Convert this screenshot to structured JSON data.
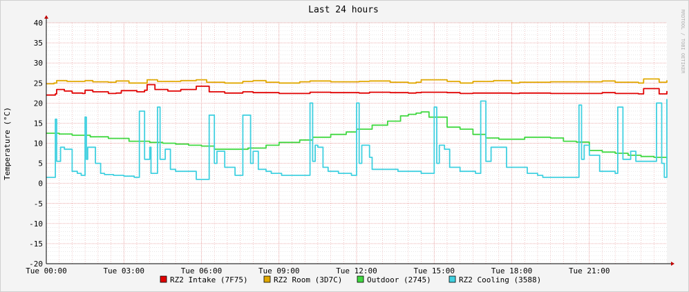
{
  "chart_data": {
    "type": "line",
    "title": "Last 24 hours",
    "ylabel": "Temperature (°C)",
    "watermark": "RRDTOOL / TOBI OETIKER",
    "ylim": [
      -20,
      40
    ],
    "y_ticks": [
      -20,
      -15,
      -10,
      -5,
      0,
      5,
      10,
      15,
      20,
      25,
      30,
      35,
      40
    ],
    "x_range_hours": [
      0,
      24
    ],
    "x_ticks": [
      {
        "hour": 0,
        "label": "Tue 00:00"
      },
      {
        "hour": 3,
        "label": "Tue 03:00"
      },
      {
        "hour": 6,
        "label": "Tue 06:00"
      },
      {
        "hour": 9,
        "label": "Tue 09:00"
      },
      {
        "hour": 12,
        "label": "Tue 12:00"
      },
      {
        "hour": 15,
        "label": "Tue 15:00"
      },
      {
        "hour": 18,
        "label": "Tue 18:00"
      },
      {
        "hour": 21,
        "label": "Tue 21:00"
      }
    ],
    "grid": true,
    "legend_position": "bottom",
    "series": [
      {
        "name": "RZ2 Intake (7F75)",
        "color": "#e00000",
        "x": [
          0,
          0.35,
          0.4,
          0.7,
          1,
          1.4,
          1.5,
          1.8,
          2.4,
          2.7,
          2.9,
          3.5,
          3.8,
          3.9,
          4.2,
          4.7,
          5,
          5.2,
          5.8,
          6.3,
          6.9,
          7.6,
          8,
          8.5,
          9,
          9.8,
          10.2,
          11,
          11.7,
          12.1,
          12.5,
          13.3,
          14,
          14.3,
          14.5,
          15.5,
          16,
          16.5,
          17.3,
          18,
          18.3,
          19.5,
          20.6,
          21.5,
          22,
          22.9,
          23.1,
          23.7,
          24
        ],
        "y": [
          22,
          22.3,
          23.4,
          23,
          22.5,
          22.4,
          23.2,
          22.8,
          22.4,
          22.5,
          23.1,
          22.8,
          23.2,
          24.6,
          23.4,
          23,
          23,
          23.4,
          24.2,
          22.8,
          22.5,
          22.8,
          22.6,
          22.6,
          22.4,
          22.4,
          22.7,
          22.6,
          22.6,
          22.5,
          22.7,
          22.6,
          22.5,
          22.6,
          22.7,
          22.6,
          22.4,
          22.5,
          22.5,
          22.4,
          22.5,
          22.4,
          22.4,
          22.6,
          22.4,
          22.3,
          23.6,
          22.3,
          23
        ]
      },
      {
        "name": "RZ2 Room (3D7C)",
        "color": "#e0a800",
        "x": [
          0,
          0.3,
          0.4,
          0.8,
          1.5,
          1.8,
          2.4,
          2.7,
          3.2,
          3.6,
          3.9,
          4.3,
          4.8,
          5.2,
          5.8,
          6.2,
          6.9,
          7.6,
          8,
          8.5,
          9,
          9.8,
          10.2,
          11,
          11.7,
          12.1,
          12.5,
          13.3,
          14,
          14.3,
          14.5,
          15.5,
          16,
          16.5,
          17.3,
          18,
          18.3,
          19.5,
          20.6,
          21.5,
          22,
          22.9,
          23.1,
          23.7,
          24
        ],
        "y": [
          24.8,
          25,
          25.6,
          25.4,
          25.6,
          25.3,
          25.2,
          25.5,
          25,
          25,
          25.8,
          25.4,
          25.4,
          25.6,
          25.8,
          25.2,
          25,
          25.4,
          25.6,
          25.2,
          25,
          25.3,
          25.5,
          25.3,
          25.3,
          25.4,
          25.5,
          25.2,
          25,
          25.2,
          25.8,
          25.4,
          25,
          25.4,
          25.6,
          25,
          25.2,
          25.3,
          25.3,
          25.5,
          25.2,
          25,
          26,
          25.2,
          25.7
        ]
      },
      {
        "name": "Outdoor (2745)",
        "color": "#40d840",
        "x": [
          0,
          0.5,
          1,
          1.7,
          2.4,
          3.2,
          4.0,
          4.5,
          5.0,
          5.5,
          6.0,
          6.5,
          7.0,
          7.8,
          8.5,
          9.0,
          9.8,
          10.3,
          11.0,
          11.6,
          12.0,
          12.6,
          13.2,
          13.7,
          14.0,
          14.3,
          14.5,
          14.8,
          15.5,
          16.0,
          16.5,
          17.0,
          17.5,
          18.0,
          18.5,
          19.0,
          19.5,
          20.0,
          20.5,
          21.0,
          21.5,
          22.0,
          22.5,
          23.0,
          23.5,
          24.0
        ],
        "y": [
          12.5,
          12.3,
          12.0,
          11.6,
          11.2,
          10.5,
          10.2,
          10.0,
          9.8,
          9.5,
          9.3,
          8.5,
          8.5,
          8.8,
          9.5,
          10.2,
          10.8,
          11.5,
          12.2,
          12.8,
          13.5,
          14.5,
          15.5,
          16.8,
          17.2,
          17.5,
          17.8,
          16.5,
          14.0,
          13.5,
          12.2,
          11.3,
          11.0,
          11.0,
          11.5,
          11.5,
          11.3,
          10.5,
          10.3,
          8.2,
          7.8,
          7.5,
          7.0,
          6.7,
          6.5,
          6.2
        ]
      },
      {
        "name": "RZ2 Cooling (3588)",
        "color": "#40d0e0",
        "x": [
          0,
          0.3,
          0.35,
          0.4,
          0.55,
          0.7,
          1.0,
          1.2,
          1.35,
          1.5,
          1.55,
          1.6,
          1.9,
          2.1,
          2.25,
          2.6,
          2.8,
          3.0,
          3.4,
          3.6,
          3.8,
          4.0,
          4.05,
          4.1,
          4.3,
          4.4,
          4.6,
          4.8,
          5.0,
          5.8,
          6.3,
          6.5,
          6.6,
          6.9,
          7.3,
          7.6,
          7.9,
          8.0,
          8.2,
          8.5,
          8.7,
          9.1,
          10.2,
          10.3,
          10.4,
          10.5,
          10.7,
          10.9,
          11.3,
          11.8,
          12.0,
          12.1,
          12.2,
          12.3,
          12.5,
          12.6,
          13.6,
          14.5,
          15.0,
          15.1,
          15.2,
          15.4,
          15.6,
          16.0,
          16.6,
          16.8,
          17.0,
          17.2,
          17.8,
          18.6,
          19.0,
          19.2,
          20.6,
          20.7,
          20.8,
          21.0,
          21.4,
          22.0,
          22.1,
          22.3,
          22.6,
          22.8,
          23.4,
          23.6,
          23.8,
          23.9,
          24.0
        ],
        "y": [
          1.5,
          1.5,
          16.0,
          5.5,
          9.0,
          8.5,
          3.0,
          2.5,
          2.0,
          16.5,
          6.0,
          9.0,
          5.0,
          2.5,
          2.2,
          2.0,
          2.0,
          1.8,
          1.5,
          18.0,
          6.0,
          9.0,
          2.5,
          2.5,
          19.0,
          6.0,
          8.5,
          3.5,
          3.0,
          1.0,
          17.0,
          5.0,
          8.0,
          4.0,
          2.0,
          17.0,
          5.0,
          8.0,
          3.5,
          3.0,
          2.5,
          2.0,
          20.0,
          5.5,
          9.5,
          9.0,
          4.0,
          3.0,
          2.5,
          2.0,
          20.0,
          5.0,
          9.5,
          9.5,
          6.5,
          3.5,
          3.0,
          2.5,
          19.0,
          5.0,
          9.5,
          8.5,
          4.0,
          3.0,
          2.5,
          20.5,
          5.5,
          9.0,
          4.0,
          2.5,
          2.0,
          1.5,
          19.5,
          6.0,
          9.5,
          7.0,
          3.0,
          2.5,
          19.0,
          6.0,
          8.0,
          5.5,
          5.5,
          20.0,
          5.0,
          1.5,
          21.0
        ]
      }
    ]
  }
}
